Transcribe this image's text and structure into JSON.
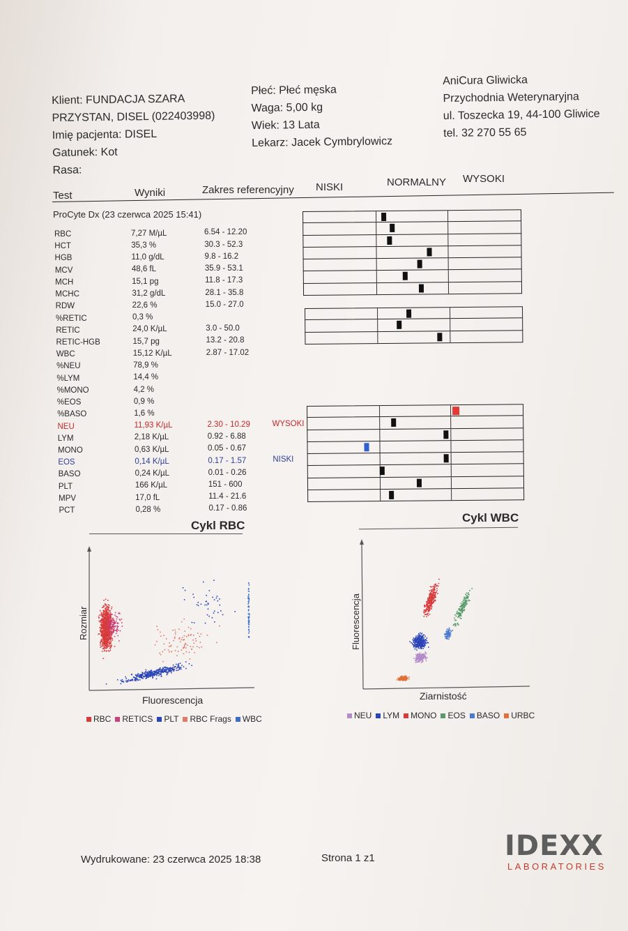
{
  "client": {
    "line1": "Klient: FUNDACJA SZARA",
    "line2": "PRZYSTAN, DISEL (022403998)",
    "patient": "Imię pacjenta: DISEL",
    "species": "Gatunek: Kot",
    "breed": "Rasa:"
  },
  "animal": {
    "sex": "Płeć: Płeć męska",
    "weight": "Waga: 5,00 kg",
    "age": "Wiek: 13 Lata",
    "vet": "Lekarz: Jacek  Cymbrylowicz"
  },
  "clinic": {
    "name": "AniCura Gliwicka",
    "type": "Przychodnia Weterynaryjna",
    "address": "ul. Toszecka 19, 44-100 Gliwice",
    "phone": "tel. 32 270 55 65"
  },
  "columns": {
    "test": "Test",
    "results": "Wyniki",
    "range": "Zakres referencyjny",
    "low": "NISKI",
    "normal": "NORMALNY",
    "high": "WYSOKI"
  },
  "analyzer": "ProCyte Dx (23 czerwca 2025 15:41)",
  "rows": [
    {
      "test": "RBC",
      "value": "7,27 M/µL",
      "range": "6.54 - 12.20",
      "flag": "",
      "pos": 0.11
    },
    {
      "test": "HCT",
      "value": "35,3 %",
      "range": "30.3 - 52.3",
      "flag": "",
      "pos": 0.23
    },
    {
      "test": "HGB",
      "value": "11,0 g/dL",
      "range": "9.8 - 16.2",
      "flag": "",
      "pos": 0.19
    },
    {
      "test": "MCV",
      "value": "48,6 fL",
      "range": "35.9 - 53.1",
      "flag": "",
      "pos": 0.74
    },
    {
      "test": "MCH",
      "value": "15,1 pg",
      "range": "11.8 - 17.3",
      "flag": "",
      "pos": 0.6
    },
    {
      "test": "MCHC",
      "value": "31,2 g/dL",
      "range": "28.1 - 35.8",
      "flag": "",
      "pos": 0.4
    },
    {
      "test": "RDW",
      "value": "22,6 %",
      "range": "15.0 - 27.0",
      "flag": "",
      "pos": 0.62
    },
    {
      "test": "%RETIC",
      "value": "0,3 %",
      "range": "",
      "flag": ""
    },
    {
      "test": "RETIC",
      "value": "24,0 K/µL",
      "range": "3.0 - 50.0",
      "flag": "",
      "pos": 0.43
    },
    {
      "test": "RETIC-HGB",
      "value": "15,7 pg",
      "range": "13.2 - 20.8",
      "flag": "",
      "pos": 0.3
    },
    {
      "test": "WBC",
      "value": "15,12 K/µL",
      "range": "2.87 - 17.02",
      "flag": "",
      "pos": 0.86
    },
    {
      "test": "%NEU",
      "value": "78,9 %",
      "range": "",
      "flag": ""
    },
    {
      "test": "%LYM",
      "value": "14,4 %",
      "range": "",
      "flag": ""
    },
    {
      "test": "%MONO",
      "value": "4,2 %",
      "range": "",
      "flag": ""
    },
    {
      "test": "%EOS",
      "value": "0,9 %",
      "range": "",
      "flag": ""
    },
    {
      "test": "%BASO",
      "value": "1,6 %",
      "range": "",
      "flag": ""
    },
    {
      "test": "NEU",
      "value": "11,93 K/µL",
      "range": "2.30 - 10.29",
      "flag": "WYSOKI",
      "pos": 1.05
    },
    {
      "test": "LYM",
      "value": "2,18 K/µL",
      "range": "0.92 - 6.88",
      "flag": "",
      "pos": 0.2
    },
    {
      "test": "MONO",
      "value": "0,63 K/µL",
      "range": "0.05 - 0.67",
      "flag": "",
      "pos": 0.93
    },
    {
      "test": "EOS",
      "value": "0,14 K/µL",
      "range": "0.17 - 1.57",
      "flag": "NISKI",
      "pos": -0.18
    },
    {
      "test": "BASO",
      "value": "0,24 K/µL",
      "range": "0.01 - 0.26",
      "flag": "",
      "pos": 0.93
    },
    {
      "test": "PLT",
      "value": "166 K/µL",
      "range": "151 - 600",
      "flag": "",
      "pos": 0.03
    },
    {
      "test": "MPV",
      "value": "17,0 fL",
      "range": "11.4 - 21.6",
      "flag": "",
      "pos": 0.55
    },
    {
      "test": "PCT",
      "value": "0,28 %",
      "range": "0.17 - 0.86",
      "flag": "",
      "pos": 0.16
    }
  ],
  "charts": {
    "rbc": {
      "title": "Cykl RBC",
      "xlabel": "Fluorescencja",
      "ylabel": "Rozmiar",
      "legend": [
        {
          "label": "RBC",
          "color": "#d83a3a"
        },
        {
          "label": "RETICS",
          "color": "#c9407a"
        },
        {
          "label": "PLT",
          "color": "#2b45b8"
        },
        {
          "label": "RBC Frags",
          "color": "#e07a6a"
        },
        {
          "label": "WBC",
          "color": "#3a6ec9"
        }
      ]
    },
    "wbc": {
      "title": "Cykl WBC",
      "xlabel": "Ziarnistość",
      "ylabel": "Fluorescencja",
      "legend": [
        {
          "label": "NEU",
          "color": "#b48cc8"
        },
        {
          "label": "LYM",
          "color": "#2b45b8"
        },
        {
          "label": "MONO",
          "color": "#d83a3a"
        },
        {
          "label": "EOS",
          "color": "#5a9a6a"
        },
        {
          "label": "BASO",
          "color": "#4a7ad0"
        },
        {
          "label": "URBC",
          "color": "#e0703a"
        }
      ]
    }
  },
  "footer": {
    "printed": "Wydrukowane: 23 czerwca 2025 18:38",
    "page": "Strona 1 z1"
  },
  "logo": {
    "brand": "IDEXX",
    "sub": "LABORATORIES"
  },
  "colors": {
    "high": "#e53935",
    "low": "#2f5fd0",
    "marker": "#111111"
  }
}
